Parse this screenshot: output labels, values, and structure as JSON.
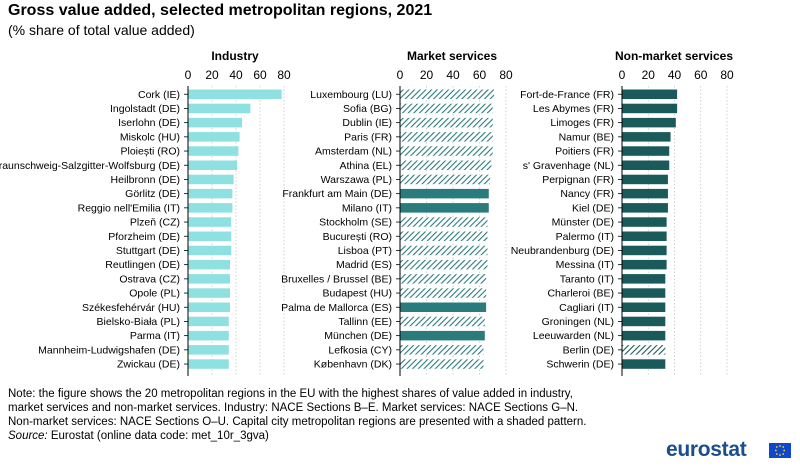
{
  "header": {
    "title": "Gross value added, selected metropolitan regions, 2021",
    "subtitle": "(% share of total value added)"
  },
  "note": {
    "lines": [
      "Note: the figure shows the 20 metropolitan regions in the EU with the highest shares of value added in industry,",
      "market services and non-market services. Industry: NACE Sections B–E. Market services: NACE Sections G–N.",
      "Non-market services: NACE Sections O–U. Capital city metropolitan regions are presented with a shaded pattern."
    ],
    "source_label": "Source:",
    "source_text": " Eurostat (online data code: met_10r_3gva)"
  },
  "logo": {
    "text": "eurostat"
  },
  "colors": {
    "industry": "#8fe0e0",
    "market": "#2a7b7c",
    "nonmarket": "#1b5a5b",
    "pattern_bg": "#ffffff"
  },
  "chart_data": [
    {
      "type": "bar",
      "orientation": "horizontal",
      "title": "Industry",
      "xlim": [
        0,
        80
      ],
      "ticks": [
        0,
        20,
        40,
        60,
        80
      ],
      "categories": [
        "Cork (IE)",
        "Ingolstadt (DE)",
        "Iserlohn (DE)",
        "Miskolc (HU)",
        "Ploiești (RO)",
        "Braunschweig-Salzgitter-Wolfsburg (DE)",
        "Heilbronn (DE)",
        "Görlitz (DE)",
        "Reggio nell'Emilia (IT)",
        "Plzeň (CZ)",
        "Pforzheim (DE)",
        "Stuttgart (DE)",
        "Reutlingen (DE)",
        "Ostrava (CZ)",
        "Opole (PL)",
        "Székesfehérvár (HU)",
        "Bielsko-Biała (PL)",
        "Parma (IT)",
        "Mannheim-Ludwigshafen (DE)",
        "Zwickau (DE)"
      ],
      "values": [
        78,
        52,
        45,
        43,
        42,
        41,
        38,
        37,
        37,
        36,
        36,
        36,
        35,
        35,
        35,
        35,
        34,
        34,
        34,
        34
      ],
      "capital": [
        false,
        false,
        false,
        false,
        false,
        false,
        false,
        false,
        false,
        false,
        false,
        false,
        false,
        false,
        false,
        false,
        false,
        false,
        false,
        false
      ]
    },
    {
      "type": "bar",
      "orientation": "horizontal",
      "title": "Market services",
      "xlim": [
        0,
        80
      ],
      "ticks": [
        0,
        20,
        40,
        60,
        80
      ],
      "categories": [
        "Luxembourg (LU)",
        "Sofia (BG)",
        "Dublin (IE)",
        "Paris (FR)",
        "Amsterdam (NL)",
        "Athina (EL)",
        "Warszawa (PL)",
        "Frankfurt am Main (DE)",
        "Milano (IT)",
        "Stockholm (SE)",
        "București (RO)",
        "Lisboa (PT)",
        "Madrid (ES)",
        "Bruxelles / Brussel (BE)",
        "Budapest (HU)",
        "Palma de Mallorca (ES)",
        "Tallinn (EE)",
        "München (DE)",
        "Lefkosia (CY)",
        "København (DK)"
      ],
      "values": [
        71,
        70,
        70,
        70,
        70,
        69,
        68,
        67,
        67,
        66,
        66,
        66,
        66,
        65,
        65,
        65,
        64,
        64,
        63,
        63
      ],
      "capital": [
        true,
        true,
        true,
        true,
        true,
        true,
        true,
        false,
        false,
        true,
        true,
        true,
        true,
        true,
        true,
        false,
        true,
        false,
        true,
        true
      ]
    },
    {
      "type": "bar",
      "orientation": "horizontal",
      "title": "Non-market services",
      "xlim": [
        0,
        80
      ],
      "ticks": [
        0,
        20,
        40,
        60,
        80
      ],
      "categories": [
        "Fort-de-France (FR)",
        "Les Abymes (FR)",
        "Limoges (FR)",
        "Namur (BE)",
        "Poitiers (FR)",
        "s' Gravenhage (NL)",
        "Perpignan (FR)",
        "Nancy (FR)",
        "Kiel (DE)",
        "Münster (DE)",
        "Palermo (IT)",
        "Neubrandenburg (DE)",
        "Messina (IT)",
        "Taranto (IT)",
        "Charleroi (BE)",
        "Cagliari (IT)",
        "Groningen (NL)",
        "Leeuwarden (NL)",
        "Berlin (DE)",
        "Schwerin (DE)"
      ],
      "values": [
        42,
        42,
        41,
        37,
        36,
        36,
        35,
        35,
        35,
        34,
        34,
        34,
        34,
        33,
        33,
        33,
        33,
        33,
        33,
        33
      ],
      "capital": [
        false,
        false,
        false,
        false,
        false,
        false,
        false,
        false,
        false,
        false,
        false,
        false,
        false,
        false,
        false,
        false,
        false,
        false,
        true,
        false
      ]
    }
  ]
}
